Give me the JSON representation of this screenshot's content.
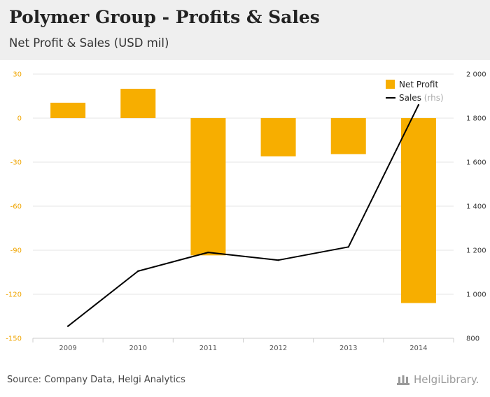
{
  "header": {
    "title": "Polymer Group - Profits & Sales",
    "subtitle": "Net Profit & Sales (USD mil)"
  },
  "colors": {
    "bar": "#f7ae00",
    "line": "#000000",
    "left_axis": "#f0a500",
    "header_bg": "#efefef"
  },
  "chart_data": {
    "type": "bar",
    "categories": [
      "2009",
      "2010",
      "2011",
      "2012",
      "2013",
      "2014"
    ],
    "series": [
      {
        "name": "Net Profit",
        "type": "bar",
        "axis": "left",
        "values": [
          10.5,
          20,
          -93.5,
          -26,
          -24.5,
          -126
        ]
      },
      {
        "name": "Sales",
        "type": "line",
        "axis": "right",
        "values": [
          855,
          1105,
          1190,
          1155,
          1215,
          1860
        ]
      }
    ],
    "y_left": {
      "min": -150,
      "max": 30,
      "ticks": [
        30,
        0,
        -30,
        -60,
        -90,
        -120,
        -150
      ],
      "tick_labels": [
        "30",
        "0",
        "-30",
        "-60",
        "-90",
        "-120",
        "-150"
      ]
    },
    "y_right": {
      "min": 800,
      "max": 2000,
      "ticks": [
        2000,
        1800,
        1600,
        1400,
        1200,
        1000,
        800
      ],
      "tick_labels": [
        "2 000",
        "1 800",
        "1 600",
        "1 400",
        "1 200",
        "1 000",
        "800"
      ]
    },
    "legend": {
      "items": [
        {
          "label": "Net Profit",
          "suffix": ""
        },
        {
          "label": "Sales",
          "suffix": "(rhs)"
        }
      ],
      "placement": "top-right"
    }
  },
  "footer": {
    "source": "Source: Company Data, Helgi Analytics",
    "brand": "HelgiLibrary."
  }
}
